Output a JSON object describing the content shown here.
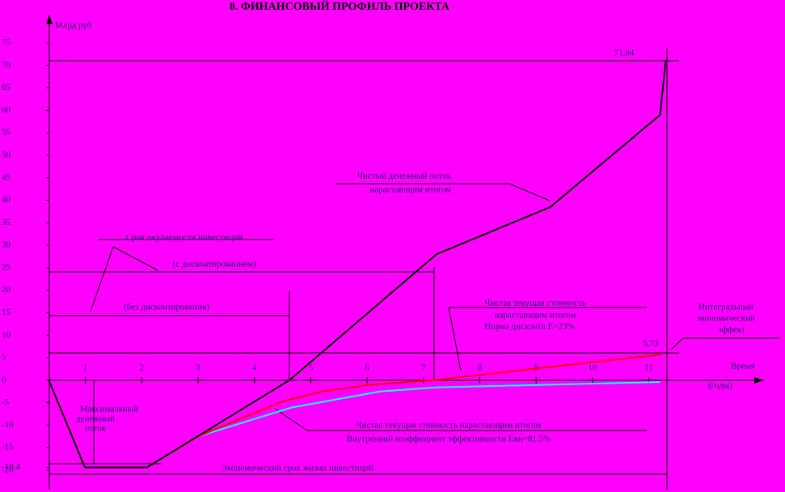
{
  "chart_data": {
    "type": "line",
    "title": "8. ФИНАНСОВЫЙ  ПРОФИЛЬ  ПРОЕКТА",
    "y_label": "Млрд руб",
    "x_label": "Время",
    "x_unit": "(годы)",
    "xlim": [
      0,
      12.9
    ],
    "ylim": [
      -20,
      75
    ],
    "xticks": [
      1,
      2,
      3,
      4,
      5,
      6,
      7,
      8,
      9,
      10,
      11
    ],
    "yticks": [
      -20,
      -19.4,
      -15,
      -10,
      -5,
      0,
      5,
      10,
      15,
      20,
      25,
      30,
      35,
      40,
      45,
      50,
      55,
      60,
      65,
      70,
      75
    ],
    "series": [
      {
        "name": "Чистый денежный поток нарастающим итогом",
        "color": "#000000",
        "x": [
          0.35,
          0.99,
          2.09,
          4.62,
          7.23,
          9.25,
          11.2,
          11.3
        ],
        "values": [
          0,
          -19.4,
          -19.4,
          0,
          28,
          38.5,
          59,
          71.04
        ]
      },
      {
        "name": "Чистая текущая стоимость нарастающим итогом Норма дисконта Е=23%",
        "color": "#ff0000",
        "x": [
          2.09,
          3,
          4.5,
          5.2,
          6.07,
          7.17,
          11.23
        ],
        "values": [
          -19.4,
          -12.5,
          -4.7,
          -2.5,
          -1,
          0,
          5.73
        ]
      },
      {
        "name": "Внутренний коэффициент эффективности Евн=81,5%",
        "color": "#00ffff",
        "x": [
          2.09,
          3,
          4.65,
          6.23,
          7.23,
          11.2
        ],
        "values": [
          -19.4,
          -12.5,
          -6.1,
          -2.5,
          -1.6,
          -0.4
        ]
      }
    ],
    "annotations": [
      "71,04",
      "5,73",
      "Чистый денежный поток",
      "нарастающим итогом",
      "Срок окупаемости инвестиций",
      "(с дисконтированием)",
      "(без дисконтирования)",
      "Чистая текущая стоимость",
      "нарастающим итогом",
      "Норма дисконта Е=23%",
      "Интегральный",
      "экономический",
      "эффект",
      "Максимальный",
      "денежный",
      "отток",
      "Чистая текущая стоимость нарастающим итогом",
      "Внутренний коэффициент эффективности Евн=81,5%",
      "Экономический срок жизни инвестиций"
    ]
  }
}
